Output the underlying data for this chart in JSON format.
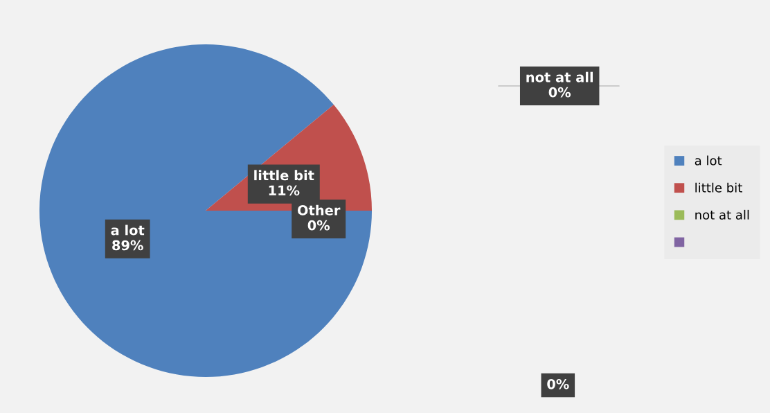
{
  "chart_data": {
    "type": "pie",
    "categories": [
      "a lot",
      "little bit",
      "not at all",
      null
    ],
    "values": [
      89,
      11,
      0,
      0
    ],
    "colors": [
      "#4f81bd",
      "#c0504d",
      "#9bbb59",
      "#8064a2"
    ],
    "value_labels": [
      "a lot\n89%",
      "little bit\n11%",
      "not at all\n0%",
      "0%"
    ],
    "annotations": [
      "Other\n0%"
    ],
    "legend": "right"
  }
}
